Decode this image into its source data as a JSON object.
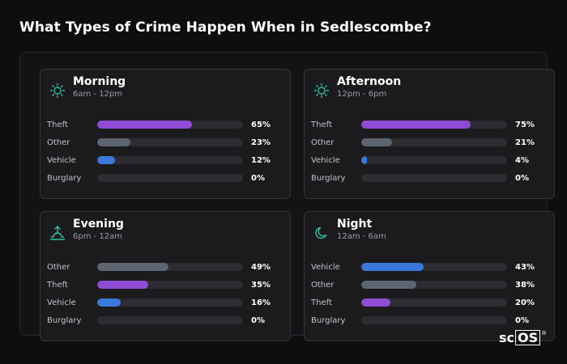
{
  "page": {
    "title": "What Types of Crime Happen When in Sedlescombe?"
  },
  "colors": {
    "Theft": "#8e4bd6",
    "Other": "#5d6573",
    "Vehicle": "#3b78dc",
    "Burglary": "#2c2c31",
    "icon": "#2fc1a4"
  },
  "cards": [
    {
      "title": "Morning",
      "subtitle": "6am - 12pm",
      "icon": "sun-icon",
      "rows": [
        {
          "label": "Theft",
          "value": 65,
          "pct": "65%"
        },
        {
          "label": "Other",
          "value": 23,
          "pct": "23%"
        },
        {
          "label": "Vehicle",
          "value": 12,
          "pct": "12%"
        },
        {
          "label": "Burglary",
          "value": 0,
          "pct": "0%"
        }
      ]
    },
    {
      "title": "Afternoon",
      "subtitle": "12pm - 6pm",
      "icon": "sun-icon",
      "rows": [
        {
          "label": "Theft",
          "value": 75,
          "pct": "75%"
        },
        {
          "label": "Other",
          "value": 21,
          "pct": "21%"
        },
        {
          "label": "Vehicle",
          "value": 4,
          "pct": "4%"
        },
        {
          "label": "Burglary",
          "value": 0,
          "pct": "0%"
        }
      ]
    },
    {
      "title": "Evening",
      "subtitle": "6pm - 12am",
      "icon": "sunset-icon",
      "rows": [
        {
          "label": "Other",
          "value": 49,
          "pct": "49%"
        },
        {
          "label": "Theft",
          "value": 35,
          "pct": "35%"
        },
        {
          "label": "Vehicle",
          "value": 16,
          "pct": "16%"
        },
        {
          "label": "Burglary",
          "value": 0,
          "pct": "0%"
        }
      ]
    },
    {
      "title": "Night",
      "subtitle": "12am - 6am",
      "icon": "moon-icon",
      "rows": [
        {
          "label": "Vehicle",
          "value": 43,
          "pct": "43%"
        },
        {
          "label": "Other",
          "value": 38,
          "pct": "38%"
        },
        {
          "label": "Theft",
          "value": 20,
          "pct": "20%"
        },
        {
          "label": "Burglary",
          "value": 0,
          "pct": "0%"
        }
      ]
    }
  ],
  "logo": {
    "prefix": "sc",
    "boxed": "OS",
    "mark": "®"
  }
}
